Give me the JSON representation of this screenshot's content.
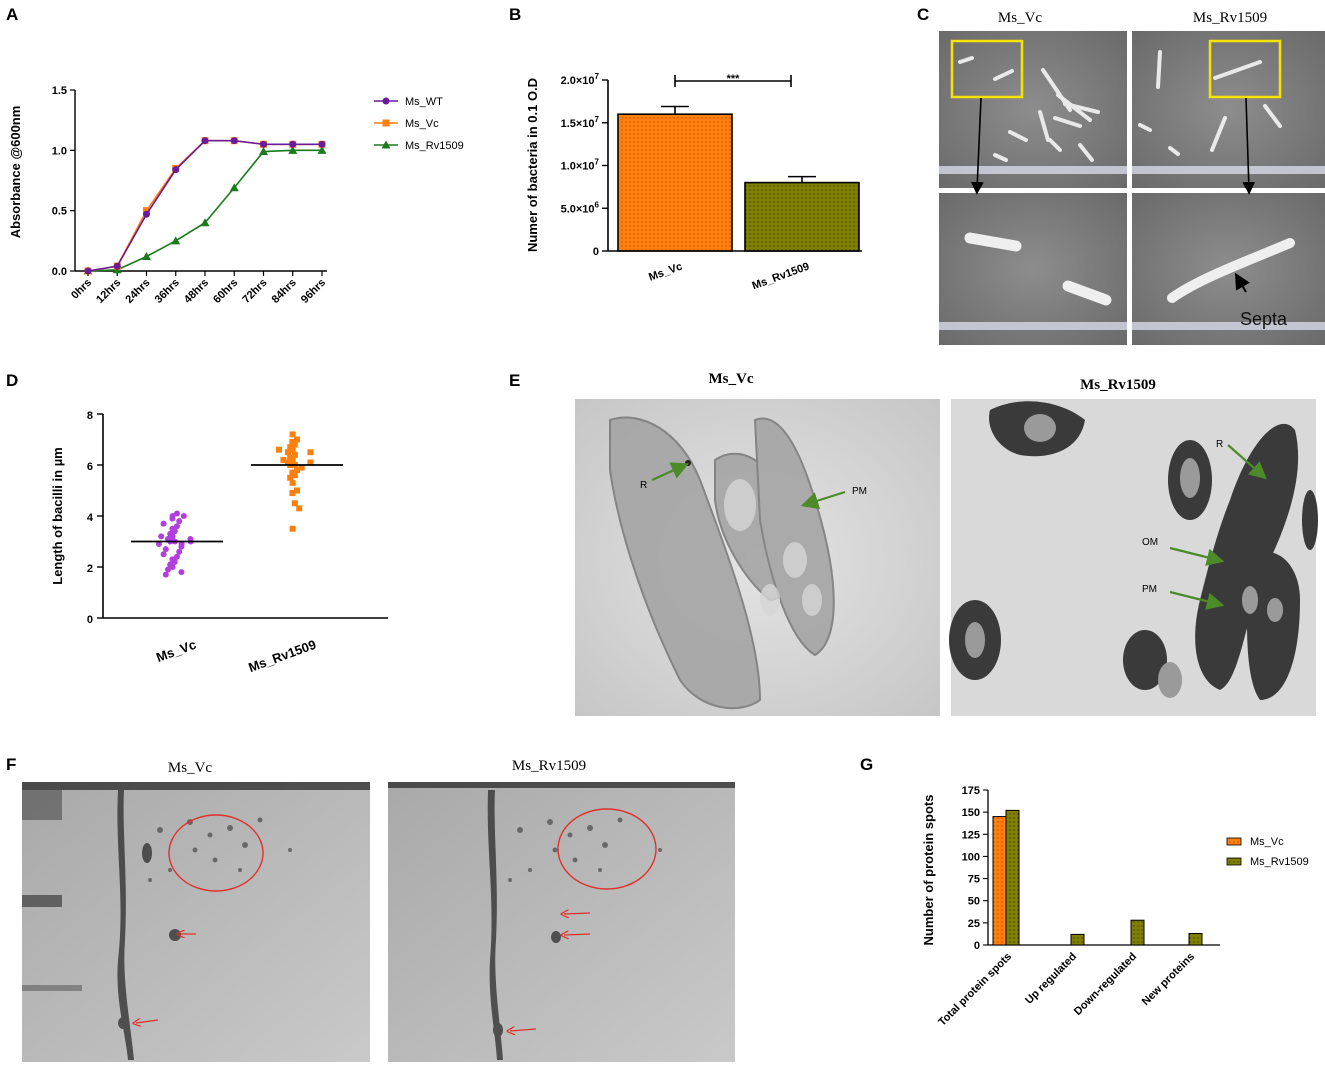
{
  "panels": {
    "A": {
      "letter": "A"
    },
    "B": {
      "letter": "B"
    },
    "C": {
      "letter": "C"
    },
    "D": {
      "letter": "D"
    },
    "E": {
      "letter": "E"
    },
    "F": {
      "letter": "F"
    },
    "G": {
      "letter": "G"
    }
  },
  "colors": {
    "ms_wt": "#6a1b9a",
    "ms_vc": "#ff7f0e",
    "ms_rv": "#1b7a1b",
    "olive": "#7a7a00",
    "purple_dots": "#b23ee0",
    "arrow_green": "#4c8a2a",
    "yellow_box": "#f5e400",
    "circle_red": "#e0302a"
  },
  "chart_data": [
    {
      "id": "A",
      "type": "line",
      "categories": [
        "0hrs",
        "12hrs",
        "24hrs",
        "36hrs",
        "48hrs",
        "60hrs",
        "72hrs",
        "84hrs",
        "96hrs"
      ],
      "ylabel": "Absorbance @600nm",
      "ylim": [
        0,
        1.5
      ],
      "yticks": [
        "0.0",
        "0.5",
        "1.0",
        "1.5"
      ],
      "legend_position": "right",
      "series": [
        {
          "name": "Ms_WT",
          "marker": "circle",
          "values": [
            0.0,
            0.04,
            0.47,
            0.84,
            1.08,
            1.08,
            1.05,
            1.05,
            1.05
          ]
        },
        {
          "name": "Ms_Vc",
          "marker": "square",
          "values": [
            0.0,
            0.04,
            0.5,
            0.85,
            1.08,
            1.08,
            1.05,
            1.05,
            1.05
          ]
        },
        {
          "name": "Ms_Rv1509",
          "marker": "triangle",
          "values": [
            0.0,
            0.01,
            0.12,
            0.25,
            0.4,
            0.69,
            0.99,
            1.0,
            1.0
          ]
        }
      ]
    },
    {
      "id": "B",
      "type": "bar",
      "categories": [
        "Ms_Vc",
        "Ms_Rv1509"
      ],
      "values": [
        16000000,
        8000000
      ],
      "errors": [
        900000,
        700000
      ],
      "ylabel": "Numer of bacteria in 0.1 O.D",
      "ylim": [
        0,
        20000000
      ],
      "ytick_mantissa": [
        "0",
        "5.0×10",
        "1.0×10",
        "1.5×10",
        "2.0×10"
      ],
      "ytick_exp": [
        "",
        "6",
        "7",
        "7",
        "7"
      ],
      "significance": "***"
    },
    {
      "id": "D",
      "type": "scatter",
      "categories": [
        "Ms_Vc",
        "Ms_Rv1509"
      ],
      "ylabel": "Length of bacilli in µm",
      "ylim": [
        0,
        8
      ],
      "yticks": [
        "0",
        "2",
        "4",
        "6",
        "8"
      ],
      "means": [
        3.0,
        6.0
      ],
      "series": [
        {
          "name": "Ms_Vc",
          "values": [
            4.0,
            4.1,
            3.9,
            4.0,
            3.8,
            3.7,
            3.6,
            3.5,
            3.4,
            3.3,
            3.2,
            3.1,
            3.1,
            3.0,
            3.0,
            2.9,
            2.9,
            2.8,
            2.7,
            2.6,
            2.5,
            2.4,
            2.3,
            2.2,
            2.1,
            2.0,
            1.9,
            1.8,
            1.7,
            3.2,
            3.0
          ]
        },
        {
          "name": "Ms_Rv1509",
          "values": [
            7.2,
            7.0,
            6.9,
            6.8,
            6.7,
            6.6,
            6.5,
            6.5,
            6.4,
            6.3,
            6.2,
            6.1,
            6.1,
            6.0,
            6.0,
            5.9,
            5.8,
            5.7,
            5.6,
            5.5,
            5.3,
            5.0,
            4.9,
            4.5,
            4.3,
            3.5,
            6.6,
            6.2
          ]
        }
      ]
    },
    {
      "id": "G",
      "type": "bar",
      "categories": [
        "Total protein spots",
        "Up regulated",
        "Down-regulated",
        "New proteins"
      ],
      "ylabel": "Number of protein spots",
      "ylim": [
        0,
        175
      ],
      "yticks": [
        "0",
        "25",
        "50",
        "75",
        "100",
        "125",
        "150",
        "175"
      ],
      "legend_position": "top-right",
      "series": [
        {
          "name": "Ms_Vc",
          "values": [
            145,
            0,
            0,
            0
          ]
        },
        {
          "name": "Ms_Rv1509",
          "values": [
            152,
            12,
            28,
            13
          ]
        }
      ]
    }
  ],
  "images": {
    "C": {
      "left_title": "Ms_Vc",
      "right_title": "Ms_Rv1509",
      "label": "Septa"
    },
    "E": {
      "left_title": "Ms_Vc",
      "right_title": "Ms_Rv1509",
      "left_labels": [
        "R",
        "PM"
      ],
      "right_labels": [
        "R",
        "OM",
        "PM"
      ]
    },
    "F": {
      "left_title": "Ms_Vc",
      "right_title": "Ms_Rv1509"
    }
  }
}
